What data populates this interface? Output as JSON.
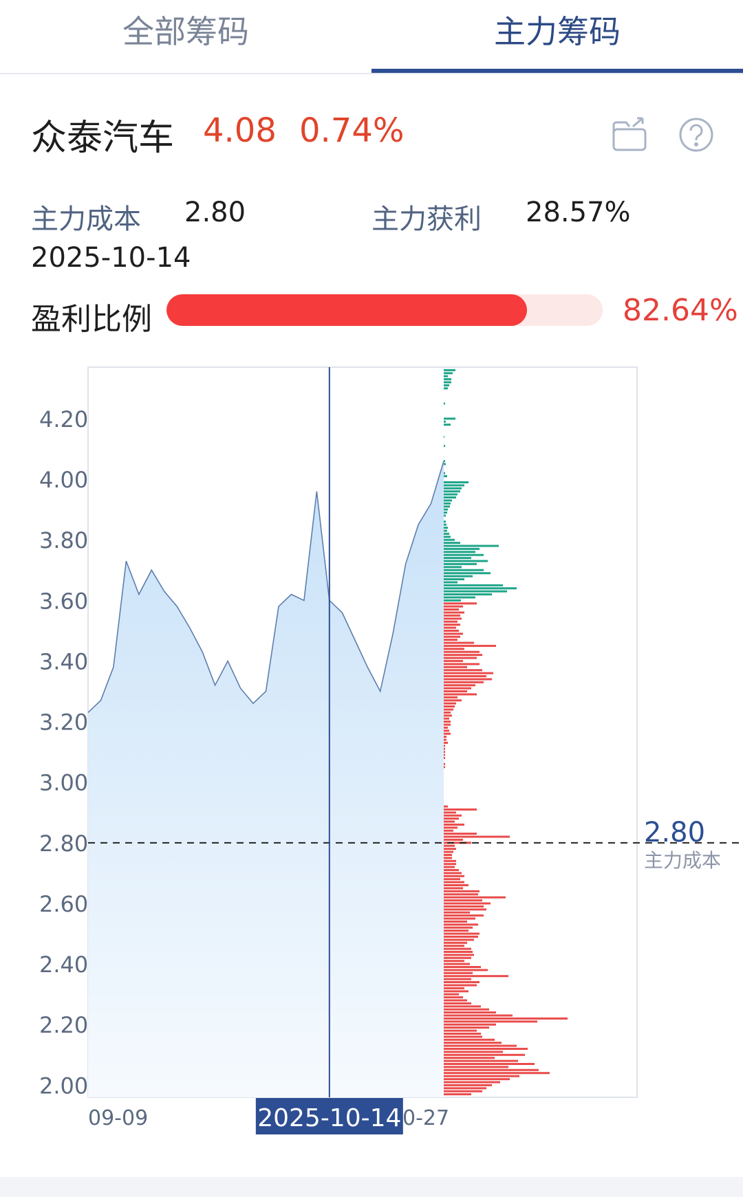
{
  "tabs": [
    {
      "label": "全部筹码",
      "active": false
    },
    {
      "label": "主力筹码",
      "active": true
    }
  ],
  "stock": {
    "name": "众泰汽车",
    "price": "4.08",
    "change_pct": "0.74%"
  },
  "icons": {
    "share": "share-icon",
    "help": "help-icon"
  },
  "metrics": {
    "cost_label": "主力成本",
    "cost_value": "2.80",
    "profit_label": "主力获利",
    "profit_value": "28.57%",
    "date": "2025-10-14"
  },
  "profit_ratio": {
    "label": "盈利比例",
    "value_text": "82.64%",
    "value": 0.8264
  },
  "colors": {
    "accent": "#2d4e93",
    "up": "#e0452b",
    "profit_fill": "#f53b3b",
    "profit_track": "#fde8e8",
    "chip_profit": "#ea4b4b",
    "chip_loss": "#1fa58a",
    "line": "#5e7eac",
    "area_top": "#c7e1f8",
    "area_bottom": "#f6fafe"
  },
  "chart_data": [
    {
      "type": "area",
      "y_ticks": [
        "4.20",
        "4.00",
        "3.80",
        "3.60",
        "3.40",
        "3.20",
        "3.00",
        "2.80",
        "2.60",
        "2.40",
        "2.20",
        "2.00"
      ],
      "ylim": [
        1.96,
        4.37
      ],
      "x_labels": [
        "09-09",
        "0-27"
      ],
      "cursor_date": "2025-10-14",
      "cursor_index": 19,
      "values": [
        3.23,
        3.27,
        3.38,
        3.73,
        3.62,
        3.7,
        3.63,
        3.58,
        3.51,
        3.43,
        3.32,
        3.4,
        3.31,
        3.26,
        3.3,
        3.58,
        3.62,
        3.6,
        3.96,
        3.6,
        3.56,
        3.47,
        3.38,
        3.3,
        3.49,
        3.72,
        3.85,
        3.92,
        4.06
      ],
      "cost_line": {
        "value": 2.8,
        "value_label": "2.80",
        "label": "主力成本"
      }
    },
    {
      "type": "bar",
      "orientation": "horizontal",
      "series": [
        {
          "color": "chip_loss",
          "prices": [
            4.36,
            4.35,
            4.34,
            4.33,
            4.32,
            4.31,
            4.3,
            4.25,
            4.2,
            4.19,
            4.18,
            4.14,
            4.11,
            4.06,
            4.05,
            4.02,
            4.01,
            3.99,
            3.98,
            3.97,
            3.96,
            3.95,
            3.94,
            3.93,
            3.92,
            3.91,
            3.9,
            3.89,
            3.88,
            3.86,
            3.85,
            3.84,
            3.83,
            3.82,
            3.81,
            3.8,
            3.79,
            3.78,
            3.77,
            3.76,
            3.75,
            3.74,
            3.73,
            3.72,
            3.71,
            3.7,
            3.69,
            3.68,
            3.67,
            3.66,
            3.65,
            3.64,
            3.63,
            3.62,
            3.61,
            3.6
          ],
          "lengths": [
            17,
            13,
            6,
            11,
            11,
            8,
            6,
            2,
            17,
            3,
            10,
            1,
            2,
            2,
            3,
            2,
            5,
            36,
            30,
            26,
            24,
            20,
            18,
            12,
            10,
            9,
            6,
            5,
            3,
            3,
            4,
            6,
            5,
            8,
            10,
            16,
            24,
            80,
            52,
            46,
            58,
            40,
            64,
            48,
            26,
            58,
            68,
            42,
            30,
            20,
            86,
            106,
            92,
            70,
            46,
            25
          ]
        },
        {
          "color": "chip_profit",
          "prices": [
            3.59,
            3.58,
            3.57,
            3.56,
            3.55,
            3.54,
            3.53,
            3.52,
            3.51,
            3.5,
            3.49,
            3.48,
            3.47,
            3.46,
            3.45,
            3.44,
            3.43,
            3.42,
            3.41,
            3.4,
            3.39,
            3.38,
            3.37,
            3.36,
            3.35,
            3.34,
            3.33,
            3.32,
            3.31,
            3.3,
            3.29,
            3.28,
            3.27,
            3.26,
            3.25,
            3.24,
            3.23,
            3.22,
            3.21,
            3.2,
            3.19,
            3.18,
            3.17,
            3.16,
            3.15,
            3.14,
            3.13,
            3.12,
            3.11,
            3.1,
            3.09,
            3.08,
            3.06,
            3.05,
            2.92,
            2.91,
            2.9,
            2.89,
            2.88,
            2.87,
            2.86,
            2.85,
            2.84,
            2.83,
            2.82,
            2.81,
            2.8,
            2.79,
            2.78,
            2.77,
            2.76,
            2.75,
            2.74,
            2.73,
            2.72,
            2.71,
            2.7,
            2.69,
            2.68,
            2.67,
            2.66,
            2.65,
            2.64,
            2.63,
            2.62,
            2.61,
            2.6,
            2.59,
            2.58,
            2.57,
            2.56,
            2.55,
            2.54,
            2.53,
            2.52,
            2.51,
            2.5,
            2.49,
            2.48,
            2.47,
            2.46,
            2.45,
            2.44,
            2.43,
            2.42,
            2.41,
            2.4,
            2.39,
            2.38,
            2.37,
            2.36,
            2.35,
            2.34,
            2.33,
            2.32,
            2.31,
            2.3,
            2.29,
            2.28,
            2.27,
            2.26,
            2.25,
            2.24,
            2.23,
            2.22,
            2.21,
            2.2,
            2.19,
            2.18,
            2.17,
            2.16,
            2.15,
            2.14,
            2.13,
            2.12,
            2.11,
            2.1,
            2.09,
            2.08,
            2.07,
            2.06,
            2.05,
            2.04,
            2.03,
            2.02,
            2.01,
            2.0,
            1.99,
            1.98,
            1.97
          ],
          "lengths": [
            48,
            28,
            22,
            30,
            24,
            26,
            20,
            24,
            18,
            22,
            28,
            24,
            20,
            44,
            76,
            30,
            52,
            56,
            48,
            28,
            52,
            34,
            56,
            72,
            62,
            70,
            58,
            46,
            40,
            34,
            48,
            20,
            26,
            18,
            16,
            14,
            10,
            12,
            8,
            10,
            10,
            6,
            8,
            10,
            4,
            4,
            6,
            2,
            2,
            2,
            2,
            2,
            2,
            2,
            6,
            48,
            18,
            26,
            22,
            16,
            30,
            20,
            14,
            48,
            96,
            28,
            40,
            16,
            18,
            14,
            12,
            12,
            18,
            18,
            16,
            22,
            26,
            30,
            24,
            30,
            36,
            28,
            52,
            50,
            90,
            56,
            68,
            58,
            62,
            38,
            58,
            46,
            34,
            50,
            42,
            36,
            52,
            50,
            44,
            34,
            30,
            40,
            42,
            44,
            40,
            30,
            38,
            54,
            64,
            42,
            94,
            40,
            52,
            48,
            30,
            36,
            22,
            28,
            34,
            40,
            54,
            66,
            76,
            100,
            180,
            136,
            76,
            66,
            48,
            54,
            56,
            74,
            84,
            106,
            122,
            86,
            118,
            74,
            108,
            132,
            94,
            138,
            154,
            110,
            96,
            82,
            70,
            62,
            56,
            40
          ]
        }
      ]
    }
  ]
}
